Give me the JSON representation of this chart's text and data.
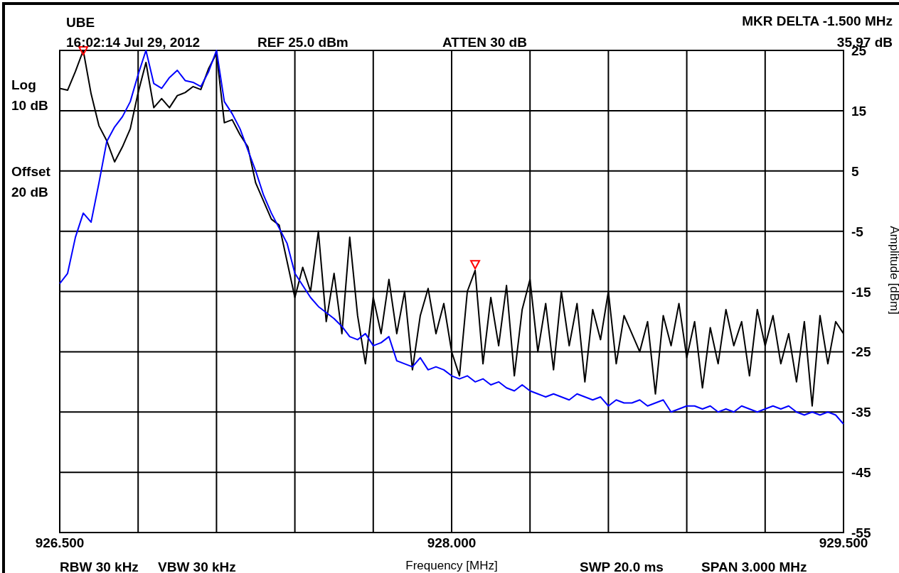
{
  "chart_data": {
    "type": "line",
    "title": "UBE",
    "xlabel": "Frequency [MHz]",
    "ylabel": "Amplitude [dBm]",
    "annotations": [
      "16:02:14 Jul 29, 2012",
      "REF 25.0 dBm",
      "ATTEN 30 dB",
      "MKR DELTA -1.500 MHz",
      "35.97 dB",
      "Log",
      "10 dB",
      "Offset",
      "20 dB",
      "RBW 30 kHz",
      "VBW 30 kHz",
      "SWP 20.0 ms",
      "SPAN 3.000 MHz"
    ],
    "x": [
      926.5,
      926.53,
      926.56,
      926.59,
      926.62,
      926.65,
      926.68,
      926.71,
      926.74,
      926.77,
      926.8,
      926.83,
      926.86,
      926.89,
      926.92,
      926.95,
      926.98,
      927.01,
      927.04,
      927.07,
      927.1,
      927.13,
      927.16,
      927.19,
      927.22,
      927.25,
      927.28,
      927.31,
      927.34,
      927.37,
      927.4,
      927.43,
      927.46,
      927.49,
      927.52,
      927.55,
      927.58,
      927.61,
      927.64,
      927.67,
      927.7,
      927.73,
      927.76,
      927.79,
      927.82,
      927.85,
      927.88,
      927.91,
      927.94,
      927.97,
      928.0,
      928.03,
      928.06,
      928.09,
      928.12,
      928.15,
      928.18,
      928.21,
      928.24,
      928.27,
      928.3,
      928.33,
      928.36,
      928.39,
      928.42,
      928.45,
      928.48,
      928.51,
      928.54,
      928.57,
      928.6,
      928.63,
      928.66,
      928.69,
      928.72,
      928.75,
      928.78,
      928.81,
      928.84,
      928.87,
      928.9,
      928.93,
      928.96,
      928.99,
      929.02,
      929.05,
      929.08,
      929.11,
      929.14,
      929.17,
      929.2,
      929.23,
      929.26,
      929.29,
      929.32,
      929.35,
      929.38,
      929.41,
      929.44,
      929.47,
      929.5
    ],
    "series": [
      {
        "color": "#000000",
        "values": [
          18.7,
          18.4,
          21.5,
          25,
          17.8,
          12.5,
          10,
          6.5,
          9,
          12,
          18,
          23,
          15.5,
          17,
          15.5,
          17.5,
          18,
          19,
          18.5,
          22,
          24.5,
          13,
          13.5,
          11,
          9,
          3,
          0,
          -3,
          -4,
          -10,
          -16,
          -11,
          -15,
          -5,
          -20,
          -12,
          -22,
          -6,
          -19,
          -27,
          -16,
          -22,
          -13,
          -22,
          -15,
          -28,
          -19,
          -14.5,
          -22,
          -17,
          -25,
          -29,
          -15,
          -11.5,
          -27,
          -16,
          -24,
          -14,
          -29,
          -18,
          -13,
          -25,
          -17,
          -28,
          -15,
          -24,
          -17,
          -30,
          -18,
          -23,
          -15,
          -27,
          -19,
          -22,
          -25,
          -20,
          -32,
          -19,
          -24,
          -17,
          -26,
          -20,
          -31,
          -21,
          -27,
          -18,
          -24,
          -20,
          -29,
          -18,
          -24,
          -19,
          -27,
          -22,
          -30,
          -20,
          -34,
          -19,
          -27,
          -20,
          -22
        ]
      },
      {
        "color": "#0000ff",
        "values": [
          -13.7,
          -12,
          -6,
          -2,
          -3.5,
          3,
          9.9,
          12.3,
          14,
          16.5,
          21,
          25,
          19.5,
          18.7,
          20.5,
          21.7,
          20,
          19.7,
          19,
          21.5,
          25,
          16.5,
          14.5,
          12,
          8.5,
          5,
          1,
          -2,
          -4.5,
          -7,
          -12,
          -14,
          -16,
          -17.5,
          -18.5,
          -19.5,
          -20.8,
          -22.5,
          -23,
          -22,
          -24,
          -23.5,
          -22.5,
          -26.5,
          -27,
          -27.5,
          -26,
          -28,
          -27.5,
          -28,
          -29,
          -29.5,
          -29,
          -30,
          -29.5,
          -30.5,
          -30,
          -31,
          -31.5,
          -30.5,
          -31.5,
          -32,
          -32.5,
          -32,
          -32.5,
          -33,
          -32,
          -32.5,
          -33,
          -32.5,
          -34,
          -33,
          -33.5,
          -33.5,
          -33,
          -34,
          -33.5,
          -33,
          -35,
          -34.5,
          -34,
          -34,
          -34.5,
          -34,
          -35,
          -34.5,
          -35,
          -34,
          -34.5,
          -35,
          -34.5,
          -34,
          -34.5,
          -34,
          -35,
          -35.5,
          -35,
          -35.5,
          -35,
          -35.5,
          -37
        ]
      },
      {
        "type": "scatter",
        "marker": "triangle",
        "color": "#ff0000",
        "x": [
          926.59,
          928.09
        ],
        "values": [
          25,
          -10.5
        ]
      }
    ],
    "xlim": [
      926.5,
      929.5
    ],
    "xticks": [
      {
        "value": 926.5,
        "label": "926.500"
      },
      {
        "value": 926.8,
        "label": null
      },
      {
        "value": 927.1,
        "label": null
      },
      {
        "value": 927.4,
        "label": null
      },
      {
        "value": 927.7,
        "label": null
      },
      {
        "value": 928.0,
        "label": "928.000"
      },
      {
        "value": 928.3,
        "label": null
      },
      {
        "value": 928.6,
        "label": null
      },
      {
        "value": 928.9,
        "label": null
      },
      {
        "value": 929.2,
        "label": null
      },
      {
        "value": 929.5,
        "label": "929.500"
      }
    ],
    "ylim": [
      -55,
      25
    ],
    "yticks": [
      25,
      15,
      5,
      -5,
      -15,
      -25,
      -35,
      -45,
      -55
    ],
    "grid": true
  }
}
